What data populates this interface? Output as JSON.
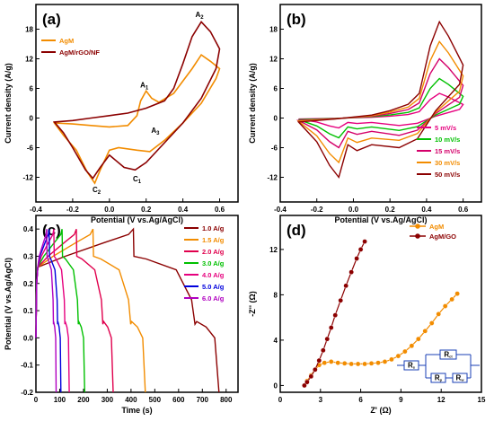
{
  "chart_data": [
    {
      "type": "line",
      "panel_label": "(a)",
      "xlabel": "Potential (V vs.Ag/AgCl)",
      "ylabel": "Current density (A/g)",
      "xlim": [
        -0.4,
        0.7
      ],
      "ylim": [
        -17,
        23
      ],
      "xticks": [
        "-0.4",
        "-0.2",
        "0.0",
        "0.2",
        "0.4",
        "0.6"
      ],
      "yticks": [
        "-12",
        "-6",
        "0",
        "6",
        "12",
        "18"
      ],
      "xtick_values": [
        -0.4,
        -0.2,
        0.0,
        0.2,
        0.4,
        0.6
      ],
      "ytick_values": [
        -12,
        -6,
        0,
        6,
        12,
        18
      ],
      "legend_position": "top-left",
      "series": [
        {
          "name": "AgM",
          "color": "#f28c00",
          "points": [
            [
              -0.3,
              -1.0
            ],
            [
              -0.2,
              -1.2
            ],
            [
              -0.1,
              -1.5
            ],
            [
              0.0,
              -1.8
            ],
            [
              0.1,
              -1.5
            ],
            [
              0.15,
              0.5
            ],
            [
              0.17,
              3.5
            ],
            [
              0.2,
              5.5
            ],
            [
              0.23,
              4.0
            ],
            [
              0.27,
              3.2
            ],
            [
              0.35,
              5.0
            ],
            [
              0.45,
              10.0
            ],
            [
              0.5,
              12.8
            ],
            [
              0.55,
              11.5
            ],
            [
              0.6,
              10.0
            ],
            [
              0.58,
              8.0
            ],
            [
              0.5,
              3.0
            ],
            [
              0.4,
              -1.0
            ],
            [
              0.3,
              -4.5
            ],
            [
              0.22,
              -6.8
            ],
            [
              0.15,
              -6.5
            ],
            [
              0.05,
              -6.0
            ],
            [
              0.0,
              -6.5
            ],
            [
              -0.05,
              -10.5
            ],
            [
              -0.08,
              -13.2
            ],
            [
              -0.12,
              -11.0
            ],
            [
              -0.18,
              -6.5
            ],
            [
              -0.25,
              -3.5
            ],
            [
              -0.3,
              -1.0
            ]
          ]
        },
        {
          "name": "AgM/rGO/NF",
          "color": "#8b0000",
          "points": [
            [
              -0.3,
              -0.8
            ],
            [
              -0.2,
              -0.5
            ],
            [
              -0.1,
              0.0
            ],
            [
              0.0,
              0.5
            ],
            [
              0.1,
              1.0
            ],
            [
              0.2,
              2.0
            ],
            [
              0.3,
              3.5
            ],
            [
              0.35,
              6.0
            ],
            [
              0.4,
              11.0
            ],
            [
              0.45,
              16.5
            ],
            [
              0.5,
              19.5
            ],
            [
              0.55,
              17.5
            ],
            [
              0.6,
              14.0
            ],
            [
              0.58,
              10.0
            ],
            [
              0.5,
              4.0
            ],
            [
              0.4,
              -1.0
            ],
            [
              0.3,
              -5.0
            ],
            [
              0.2,
              -9.0
            ],
            [
              0.14,
              -10.5
            ],
            [
              0.08,
              -10.0
            ],
            [
              0.0,
              -7.5
            ],
            [
              -0.05,
              -10.0
            ],
            [
              -0.09,
              -12.2
            ],
            [
              -0.13,
              -10.5
            ],
            [
              -0.2,
              -6.0
            ],
            [
              -0.25,
              -3.0
            ],
            [
              -0.3,
              -0.8
            ]
          ]
        }
      ],
      "annotations": [
        {
          "text": "A2",
          "main": "A",
          "sub": "2",
          "x": 0.49,
          "y": 20.5
        },
        {
          "text": "A1",
          "main": "A",
          "sub": "1",
          "x": 0.19,
          "y": 6.2
        },
        {
          "text": "A3",
          "main": "A",
          "sub": "3",
          "x": 0.25,
          "y": -3.0
        },
        {
          "text": "C1",
          "main": "C",
          "sub": "1",
          "x": 0.15,
          "y": -12.8
        },
        {
          "text": "C2",
          "main": "C",
          "sub": "2",
          "x": -0.07,
          "y": -15.0
        }
      ]
    },
    {
      "type": "line",
      "panel_label": "(b)",
      "xlabel": "Potential (V vs.Ag/AgCl)",
      "ylabel": "Current density (A/g)",
      "xlim": [
        -0.4,
        0.7
      ],
      "ylim": [
        -17,
        23
      ],
      "xticks": [
        "-0.4",
        "-0.2",
        "0.0",
        "0.2",
        "0.4",
        "0.6"
      ],
      "yticks": [
        "-12",
        "-6",
        "0",
        "6",
        "12",
        "18"
      ],
      "xtick_values": [
        -0.4,
        -0.2,
        0.0,
        0.2,
        0.4,
        0.6
      ],
      "ytick_values": [
        -12,
        -6,
        0,
        6,
        12,
        18
      ],
      "legend_position": "bottom-right",
      "series": [
        {
          "name": "5  mV/s",
          "color": "#e6007e",
          "peak": 5.0,
          "cath_trough": -2.0,
          "cath_trough2": -1.5
        },
        {
          "name": "10 mV/s",
          "color": "#00c000",
          "peak": 8.0,
          "cath_trough": -4.0,
          "cath_trough2": -2.5
        },
        {
          "name": "15 mV/s",
          "color": "#d4006a",
          "peak": 12.0,
          "cath_trough": -6.0,
          "cath_trough2": -3.5
        },
        {
          "name": "30 mV/s",
          "color": "#f28c00",
          "peak": 15.5,
          "cath_trough": -9.0,
          "cath_trough2": -4.5
        },
        {
          "name": "50 mV/s",
          "color": "#8b0000",
          "peak": 19.5,
          "cath_trough": -12.0,
          "cath_trough2": -6.0
        }
      ]
    },
    {
      "type": "line",
      "panel_label": "(c)",
      "xlabel": "Time (s)",
      "ylabel": "Potential (V vs.Ag/AgCl)",
      "xlim": [
        0,
        850
      ],
      "ylim": [
        -0.2,
        0.45
      ],
      "xticks": [
        "0",
        "100",
        "200",
        "300",
        "400",
        "500",
        "600",
        "700",
        "800"
      ],
      "yticks": [
        "-0.2",
        "-0.1",
        "0.0",
        "0.1",
        "0.2",
        "0.3",
        "0.4"
      ],
      "xtick_values": [
        0,
        100,
        200,
        300,
        400,
        500,
        600,
        700,
        800
      ],
      "ytick_values": [
        -0.2,
        -0.1,
        0.0,
        0.1,
        0.2,
        0.3,
        0.4
      ],
      "legend_position": "top-right",
      "series": [
        {
          "name": "1.0 A/g",
          "color": "#8b0000",
          "t_charge": 410,
          "t_end": 770
        },
        {
          "name": "1.5 A/g",
          "color": "#f28c00",
          "t_charge": 240,
          "t_end": 460
        },
        {
          "name": "2.0 A/g",
          "color": "#e0004d",
          "t_charge": 170,
          "t_end": 325
        },
        {
          "name": "3.0 A/g",
          "color": "#00c000",
          "t_charge": 110,
          "t_end": 205
        },
        {
          "name": "4.0 A/g",
          "color": "#e6007e",
          "t_charge": 75,
          "t_end": 140
        },
        {
          "name": "5.0 A/g",
          "color": "#0000dd",
          "t_charge": 55,
          "t_end": 105
        },
        {
          "name": "6.0 A/g",
          "color": "#b000c0",
          "t_charge": 45,
          "t_end": 85
        }
      ]
    },
    {
      "type": "scatter",
      "panel_label": "(d)",
      "xlabel": "Z' (Ω)",
      "ylabel": "-Z'' (Ω)",
      "xlim": [
        0,
        15
      ],
      "ylim": [
        -0.6,
        15
      ],
      "xticks": [
        "0",
        "3",
        "6",
        "9",
        "12",
        "15"
      ],
      "yticks": [
        "0",
        "4",
        "8",
        "12"
      ],
      "xtick_values": [
        0,
        3,
        6,
        9,
        12,
        15
      ],
      "ytick_values": [
        0,
        4,
        8,
        12
      ],
      "legend_position": "top-right",
      "series": [
        {
          "name": "AgM",
          "color": "#f28c00",
          "points": [
            [
              1.8,
              0.0
            ],
            [
              2.0,
              0.4
            ],
            [
              2.3,
              0.9
            ],
            [
              2.6,
              1.4
            ],
            [
              2.9,
              1.8
            ],
            [
              3.3,
              2.0
            ],
            [
              3.8,
              2.1
            ],
            [
              4.3,
              2.0
            ],
            [
              4.8,
              1.95
            ],
            [
              5.3,
              1.9
            ],
            [
              5.8,
              1.9
            ],
            [
              6.3,
              1.9
            ],
            [
              6.8,
              1.95
            ],
            [
              7.3,
              2.0
            ],
            [
              7.8,
              2.1
            ],
            [
              8.3,
              2.3
            ],
            [
              8.8,
              2.6
            ],
            [
              9.3,
              3.0
            ],
            [
              9.8,
              3.5
            ],
            [
              10.3,
              4.1
            ],
            [
              10.8,
              4.8
            ],
            [
              11.3,
              5.5
            ],
            [
              11.8,
              6.3
            ],
            [
              12.3,
              7.0
            ],
            [
              12.8,
              7.6
            ],
            [
              13.2,
              8.1
            ]
          ]
        },
        {
          "name": "AgM/GO",
          "color": "#8b0000",
          "points": [
            [
              1.8,
              0.0
            ],
            [
              2.0,
              0.3
            ],
            [
              2.3,
              0.8
            ],
            [
              2.6,
              1.4
            ],
            [
              2.9,
              2.2
            ],
            [
              3.2,
              3.1
            ],
            [
              3.5,
              4.1
            ],
            [
              3.8,
              5.1
            ],
            [
              4.1,
              6.2
            ],
            [
              4.5,
              7.5
            ],
            [
              4.9,
              8.8
            ],
            [
              5.3,
              10.0
            ],
            [
              5.7,
              11.2
            ],
            [
              6.0,
              12.0
            ],
            [
              6.3,
              12.7
            ]
          ]
        }
      ],
      "inset_labels": [
        "Rs",
        "Rct",
        "Rp",
        "Rw"
      ]
    }
  ]
}
